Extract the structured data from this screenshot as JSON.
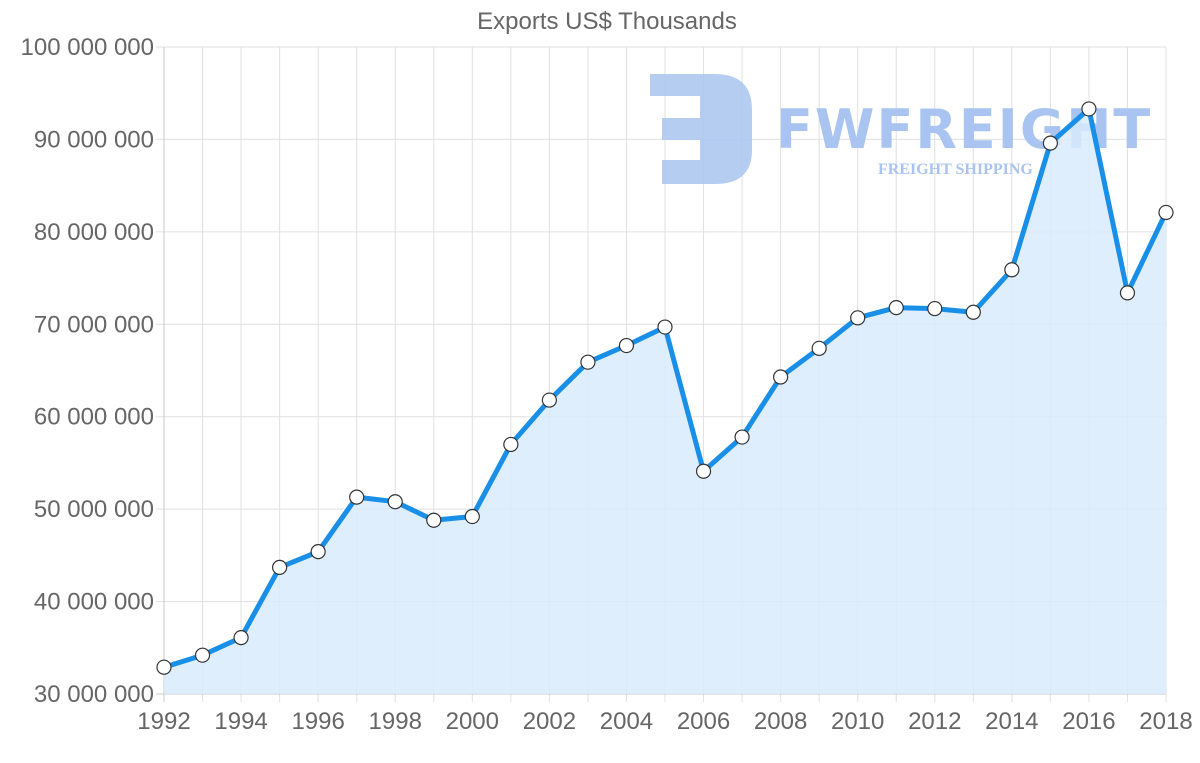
{
  "chart_data": {
    "type": "area",
    "title": "Exports US$ Thousands",
    "xlabel": "",
    "ylabel": "",
    "x": [
      1992,
      1993,
      1994,
      1995,
      1996,
      1997,
      1998,
      1999,
      2000,
      2001,
      2002,
      2003,
      2004,
      2005,
      2006,
      2007,
      2008,
      2009,
      2010,
      2011,
      2012,
      2013,
      2014,
      2015,
      2016,
      2017,
      2018
    ],
    "series": [
      {
        "name": "Exports US$ Thousands",
        "values": [
          32900000,
          34200000,
          36100000,
          43700000,
          45400000,
          51300000,
          50800000,
          48800000,
          49200000,
          57000000,
          61800000,
          65900000,
          67700000,
          69700000,
          54100000,
          57800000,
          64300000,
          67400000,
          70700000,
          71800000,
          71700000,
          71300000,
          75900000,
          89600000,
          93300000,
          73400000,
          82100000
        ]
      }
    ],
    "ylim": [
      30000000,
      100000000
    ],
    "xlim": [
      1992,
      2018
    ],
    "y_ticks": [
      "100 000 000",
      "90 000 000",
      "80 000 000",
      "70 000 000",
      "60 000 000",
      "50 000 000",
      "40 000 000",
      "30 000 000"
    ],
    "x_ticks": [
      "1992",
      "1994",
      "1996",
      "1998",
      "2000",
      "2002",
      "2004",
      "2006",
      "2008",
      "2010",
      "2012",
      "2014",
      "2016",
      "2018"
    ],
    "grid": true,
    "legend": "none",
    "colors": {
      "line": "#1a8fe8",
      "fill": "#d8ebfb",
      "point_fill": "#ffffff",
      "point_stroke": "#333333",
      "grid": "#e0e0e0",
      "text": "#666666"
    }
  },
  "watermark": {
    "brand": "FWFREIGHT",
    "tagline": "FREIGHT SHIPPING",
    "color": "#a9c4f0"
  }
}
